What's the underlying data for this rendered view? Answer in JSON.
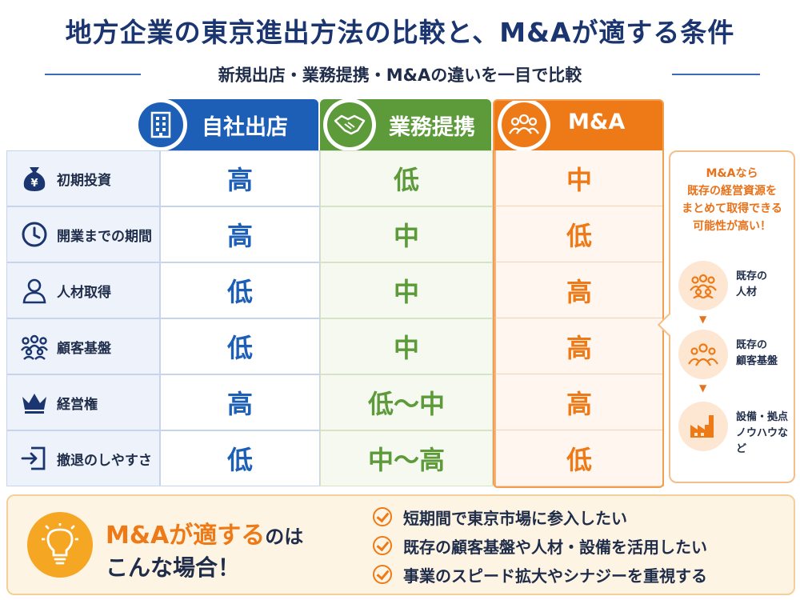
{
  "title": "地方企業の東京進出方法の比較と、M&Aが適する条件",
  "subtitle": "新規出店・業務提携・M&Aの違いを一目で比較",
  "columns": {
    "self": "自社出店",
    "partnership": "業務提携",
    "ma": "M&A"
  },
  "rows": [
    {
      "label": "初期投資",
      "icon": "yen-bag-icon",
      "self": "高",
      "partnership": "低",
      "ma": "中"
    },
    {
      "label": "開業までの期間",
      "icon": "clock-icon",
      "self": "高",
      "partnership": "中",
      "ma": "低"
    },
    {
      "label": "人材取得",
      "icon": "person-icon",
      "self": "低",
      "partnership": "中",
      "ma": "高"
    },
    {
      "label": "顧客基盤",
      "icon": "group-icon",
      "self": "低",
      "partnership": "中",
      "ma": "高"
    },
    {
      "label": "経営権",
      "icon": "crown-icon",
      "self": "高",
      "partnership": "低〜中",
      "ma": "高"
    },
    {
      "label": "撤退のしやすさ",
      "icon": "exit-door-icon",
      "self": "低",
      "partnership": "中〜高",
      "ma": "低"
    }
  ],
  "side_panel": {
    "heading": [
      "M&Aなら",
      "既存の経営資源を",
      "まとめて取得できる",
      "可能性が高い！"
    ],
    "items": [
      {
        "icon": "people-icon",
        "lines": [
          "既存の",
          "人材"
        ]
      },
      {
        "icon": "customers-icon",
        "lines": [
          "既存の",
          "顧客基盤"
        ]
      },
      {
        "icon": "factory-icon",
        "lines": [
          "設備・拠点",
          "ノウハウなど"
        ]
      }
    ]
  },
  "bottom": {
    "title_highlight": "M&Aが適する",
    "title_tail": "のは",
    "title_line2": "こんな場合！",
    "items": [
      "短期間で東京市場に参入したい",
      "既存の顧客基盤や人材・設備を活用したい",
      "事業のスピード拡大やシナジーを重視する"
    ]
  },
  "colors": {
    "self": "#1d5fb6",
    "partnership": "#5c9a3a",
    "ma": "#ee7a17",
    "title": "#1b3570"
  }
}
